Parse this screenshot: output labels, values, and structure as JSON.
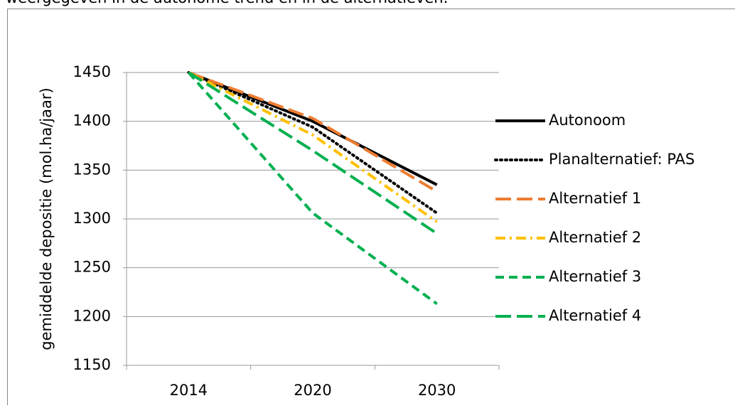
{
  "chart_data": {
    "type": "line",
    "caption": "weergegeven in de autonome trend en in de alternatieven.",
    "y_label": "gemiddelde depositie (mol.ha/jaar)",
    "categories": [
      "2014",
      "2020",
      "2030"
    ],
    "series": [
      {
        "name": "Autonoom",
        "color": "#000000",
        "dash": "solid",
        "values": [
          1450,
          1400,
          1335
        ]
      },
      {
        "name": "Planalternatief: PAS",
        "color": "#000000",
        "dash": "dot",
        "values": [
          1450,
          1394,
          1306
        ]
      },
      {
        "name": "Alternatief 1",
        "color": "#ed7d31",
        "dash": "long-dash",
        "values": [
          1450,
          1403,
          1328
        ]
      },
      {
        "name": "Alternatief 2",
        "color": "#ffc000",
        "dash": "dash-dot",
        "values": [
          1450,
          1386,
          1297
        ]
      },
      {
        "name": "Alternatief 3",
        "color": "#00b050",
        "dash": "dash",
        "values": [
          1450,
          1306,
          1213
        ]
      },
      {
        "name": "Alternatief 4",
        "color": "#00b050",
        "dash": "long-dash",
        "values": [
          1450,
          1370,
          1285
        ]
      }
    ],
    "ylim": [
      1150,
      1450
    ],
    "yticks": [
      1150,
      1200,
      1250,
      1300,
      1350,
      1400,
      1450
    ],
    "grid": true,
    "legend": "right"
  }
}
